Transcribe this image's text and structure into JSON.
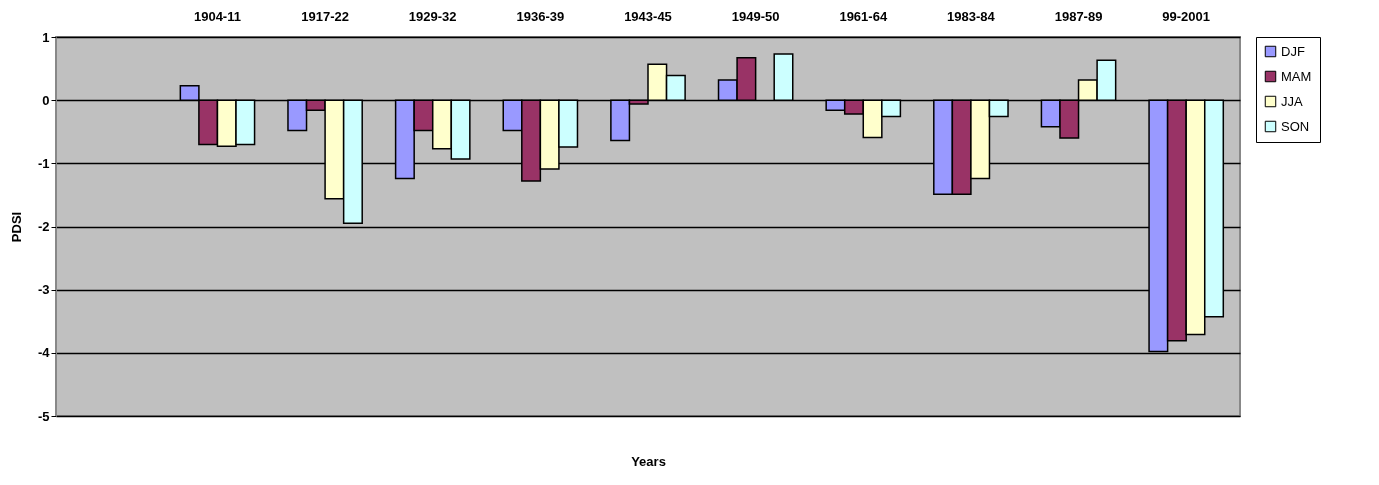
{
  "chart_data": {
    "type": "bar",
    "xlabel": "Years",
    "ylabel": "PDSI",
    "categories": [
      null,
      "1904-11",
      "1917-22",
      "1929-32",
      "1936-39",
      "1943-45",
      "1949-50",
      "1961-64",
      "1983-84",
      "1987-89",
      "99-2001"
    ],
    "series": [
      {
        "name": "DJF",
        "color": "#9999ff",
        "values": [
          null,
          0.23,
          -0.48,
          -1.24,
          -0.48,
          -0.64,
          0.32,
          -0.16,
          -1.49,
          -0.42,
          -3.98
        ]
      },
      {
        "name": "MAM",
        "color": "#993366",
        "values": [
          null,
          -0.7,
          -0.16,
          -0.48,
          -1.28,
          -0.06,
          0.67,
          -0.22,
          -1.49,
          -0.6,
          -3.81
        ]
      },
      {
        "name": "JJA",
        "color": "#ffffcc",
        "values": [
          null,
          -0.73,
          -1.56,
          -0.77,
          -1.09,
          0.57,
          null,
          -0.59,
          -1.24,
          0.32,
          -3.71
        ]
      },
      {
        "name": "SON",
        "color": "#ccffff",
        "values": [
          null,
          -0.7,
          -1.95,
          -0.93,
          -0.74,
          0.39,
          0.73,
          -0.26,
          -0.26,
          0.63,
          -3.43
        ]
      }
    ],
    "ylim": [
      -5,
      1
    ],
    "yticks": [
      -5,
      -4,
      -3,
      -2,
      -1,
      0,
      1
    ],
    "grid": "y",
    "legend": "right"
  }
}
